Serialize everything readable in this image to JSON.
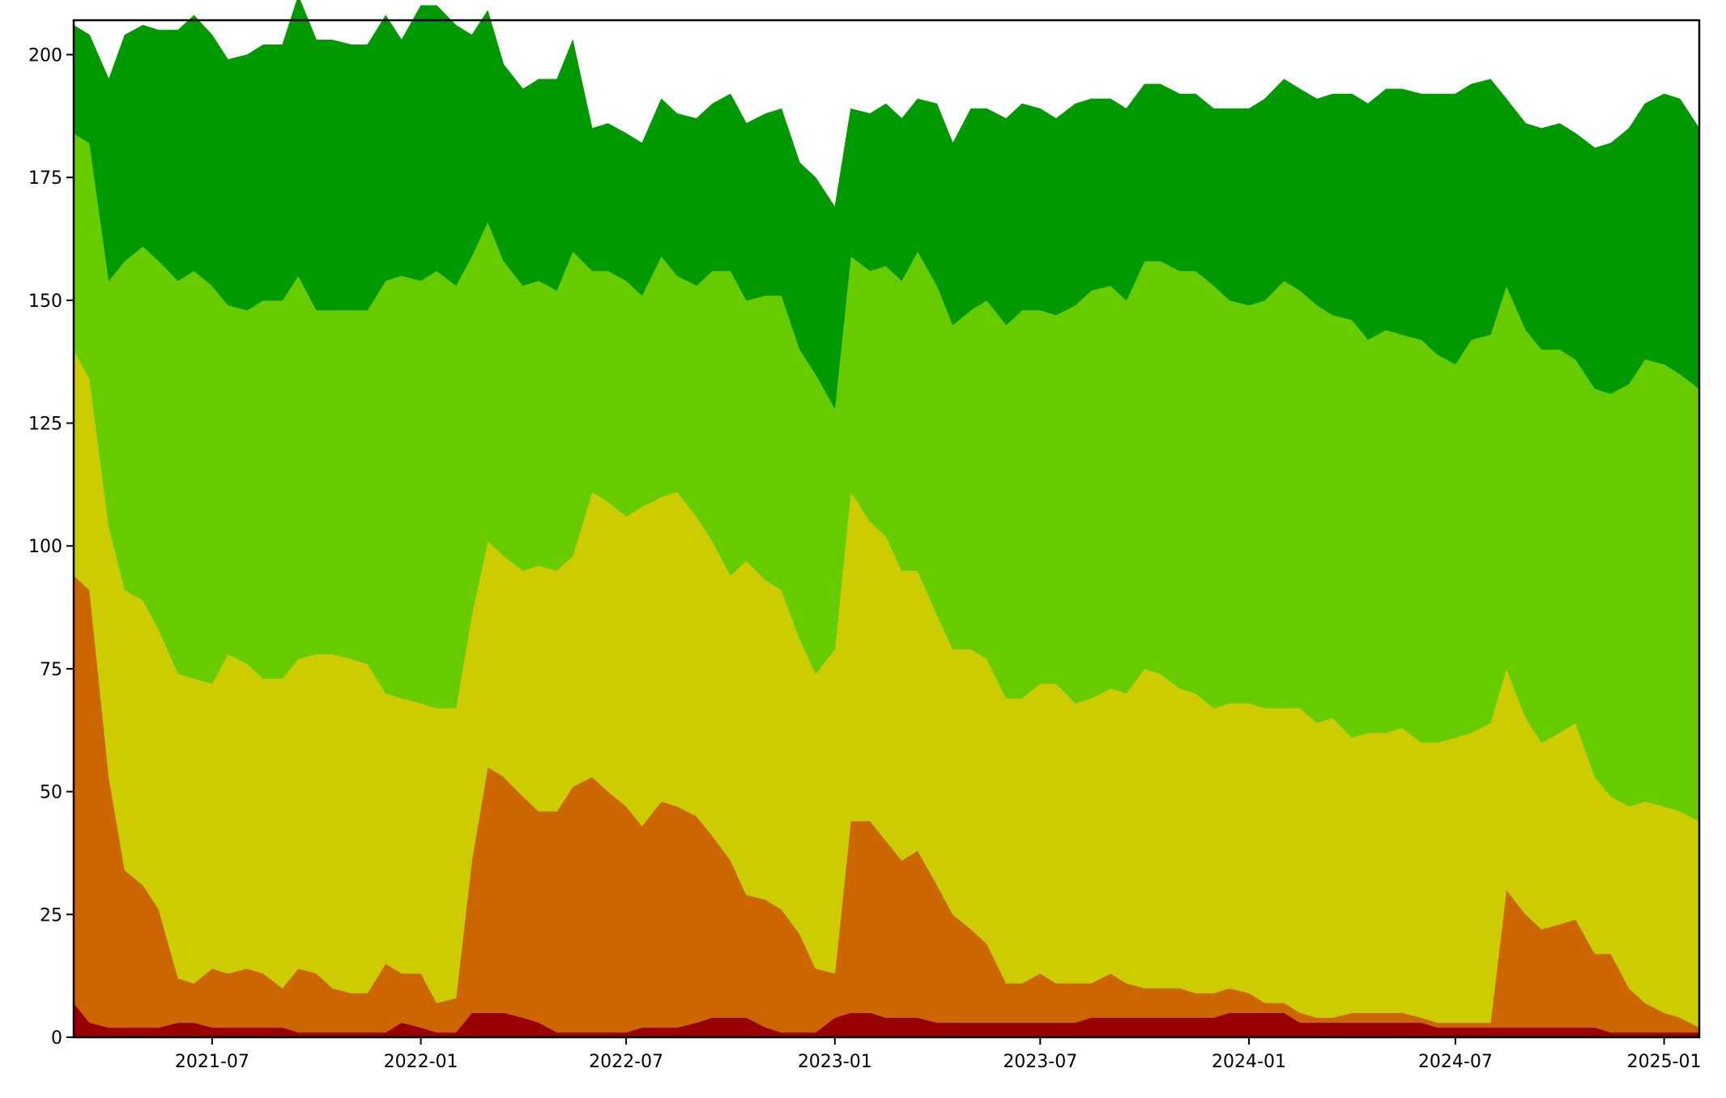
{
  "chart_data": {
    "type": "area",
    "stacked": true,
    "title": "",
    "xlabel": "",
    "ylabel": "",
    "x_start": "2021-03-01",
    "x_end": "2025-02-01",
    "ylim": [
      0,
      207
    ],
    "grid": false,
    "legend": "none",
    "x_ticks": [
      {
        "date": "2021-07-01",
        "label": "2021-07"
      },
      {
        "date": "2022-01-01",
        "label": "2022-01"
      },
      {
        "date": "2022-07-01",
        "label": "2022-07"
      },
      {
        "date": "2023-01-01",
        "label": "2023-01"
      },
      {
        "date": "2023-07-01",
        "label": "2023-07"
      },
      {
        "date": "2024-01-01",
        "label": "2024-01"
      },
      {
        "date": "2024-07-01",
        "label": "2024-07"
      },
      {
        "date": "2025-01-01",
        "label": "2025-01"
      }
    ],
    "y_ticks": [
      0,
      25,
      50,
      75,
      100,
      125,
      150,
      175,
      200
    ],
    "colors": [
      "#990000",
      "#cc6600",
      "#cccc00",
      "#66cc00",
      "#009900"
    ],
    "x": [
      "2021-03-01",
      "2021-03-15",
      "2021-04-01",
      "2021-04-15",
      "2021-05-01",
      "2021-05-15",
      "2021-06-01",
      "2021-06-15",
      "2021-07-01",
      "2021-07-15",
      "2021-08-01",
      "2021-08-15",
      "2021-09-01",
      "2021-09-15",
      "2021-10-01",
      "2021-10-15",
      "2021-11-01",
      "2021-11-15",
      "2021-12-01",
      "2021-12-15",
      "2022-01-01",
      "2022-01-15",
      "2022-02-01",
      "2022-02-15",
      "2022-03-01",
      "2022-03-15",
      "2022-04-01",
      "2022-04-15",
      "2022-05-01",
      "2022-05-15",
      "2022-06-01",
      "2022-06-15",
      "2022-07-01",
      "2022-07-15",
      "2022-08-01",
      "2022-08-15",
      "2022-09-01",
      "2022-09-15",
      "2022-10-01",
      "2022-10-15",
      "2022-11-01",
      "2022-11-15",
      "2022-12-01",
      "2022-12-15",
      "2023-01-01",
      "2023-01-15",
      "2023-02-01",
      "2023-02-15",
      "2023-03-01",
      "2023-03-15",
      "2023-04-01",
      "2023-04-15",
      "2023-05-01",
      "2023-05-15",
      "2023-06-01",
      "2023-06-15",
      "2023-07-01",
      "2023-07-15",
      "2023-08-01",
      "2023-08-15",
      "2023-09-01",
      "2023-09-15",
      "2023-10-01",
      "2023-10-15",
      "2023-11-01",
      "2023-11-15",
      "2023-12-01",
      "2023-12-15",
      "2024-01-01",
      "2024-01-15",
      "2024-02-01",
      "2024-02-15",
      "2024-03-01",
      "2024-03-15",
      "2024-04-01",
      "2024-04-15",
      "2024-05-01",
      "2024-05-15",
      "2024-06-01",
      "2024-06-15",
      "2024-07-01",
      "2024-07-15",
      "2024-08-01",
      "2024-08-15",
      "2024-09-01",
      "2024-09-15",
      "2024-10-01",
      "2024-10-15",
      "2024-11-01",
      "2024-11-15",
      "2024-12-01",
      "2024-12-15",
      "2025-01-01",
      "2025-01-15",
      "2025-02-01"
    ],
    "series": [
      {
        "values": [
          7,
          3,
          2,
          2,
          2,
          2,
          3,
          3,
          2,
          2,
          2,
          2,
          2,
          1,
          1,
          1,
          1,
          1,
          1,
          3,
          2,
          1,
          1,
          5,
          5,
          5,
          4,
          3,
          1,
          1,
          1,
          1,
          1,
          2,
          2,
          2,
          3,
          4,
          4,
          4,
          2,
          1,
          1,
          1,
          4,
          5,
          5,
          4,
          4,
          4,
          3,
          3,
          3,
          3,
          3,
          3,
          3,
          3,
          3,
          4,
          4,
          4,
          4,
          4,
          4,
          4,
          4,
          5,
          5,
          5,
          5,
          3,
          3,
          3,
          3,
          3,
          3,
          3,
          3,
          2,
          2,
          2,
          2,
          2,
          2,
          2,
          2,
          2,
          2,
          1,
          1,
          1,
          1,
          1,
          1
        ]
      },
      {
        "values": [
          87,
          88,
          51,
          32,
          29,
          24,
          9,
          8,
          12,
          11,
          12,
          11,
          8,
          13,
          12,
          9,
          8,
          8,
          14,
          10,
          11,
          6,
          7,
          31,
          50,
          48,
          45,
          43,
          45,
          50,
          52,
          49,
          46,
          41,
          46,
          45,
          42,
          37,
          32,
          25,
          26,
          25,
          20,
          13,
          9,
          39,
          39,
          36,
          32,
          34,
          28,
          22,
          19,
          16,
          8,
          8,
          10,
          8,
          8,
          7,
          9,
          7,
          6,
          6,
          6,
          5,
          5,
          5,
          4,
          2,
          2,
          2,
          1,
          1,
          2,
          2,
          2,
          2,
          1,
          1,
          1,
          1,
          1,
          28,
          23,
          20,
          21,
          22,
          15,
          16,
          9,
          6,
          4,
          3,
          1
        ]
      },
      {
        "values": [
          46,
          43,
          51,
          57,
          58,
          57,
          62,
          62,
          58,
          65,
          62,
          60,
          63,
          63,
          65,
          68,
          68,
          67,
          55,
          56,
          55,
          60,
          59,
          50,
          46,
          45,
          46,
          50,
          49,
          47,
          58,
          59,
          59,
          65,
          62,
          64,
          61,
          60,
          58,
          68,
          65,
          65,
          60,
          60,
          66,
          67,
          61,
          62,
          59,
          57,
          55,
          54,
          57,
          58,
          58,
          58,
          59,
          61,
          57,
          58,
          58,
          59,
          65,
          64,
          61,
          61,
          58,
          58,
          59,
          60,
          60,
          62,
          60,
          61,
          56,
          57,
          57,
          58,
          56,
          57,
          58,
          59,
          61,
          45,
          40,
          38,
          39,
          40,
          36,
          32,
          37,
          41,
          42,
          42,
          42
        ]
      },
      {
        "values": [
          44,
          48,
          50,
          67,
          72,
          75,
          80,
          83,
          81,
          71,
          72,
          77,
          77,
          78,
          70,
          70,
          71,
          72,
          84,
          86,
          86,
          89,
          86,
          73,
          65,
          60,
          58,
          58,
          57,
          62,
          45,
          47,
          48,
          43,
          49,
          44,
          47,
          55,
          62,
          53,
          58,
          60,
          59,
          61,
          49,
          48,
          51,
          55,
          59,
          65,
          67,
          66,
          69,
          73,
          76,
          79,
          76,
          75,
          81,
          83,
          82,
          80,
          83,
          84,
          85,
          86,
          86,
          82,
          81,
          83,
          87,
          85,
          85,
          82,
          85,
          80,
          82,
          80,
          82,
          79,
          76,
          80,
          79,
          78,
          79,
          80,
          78,
          74,
          79,
          82,
          86,
          90,
          90,
          89,
          88
        ]
      },
      {
        "values": [
          22,
          22,
          41,
          46,
          45,
          47,
          51,
          52,
          51,
          50,
          52,
          52,
          52,
          57,
          55,
          55,
          54,
          54,
          54,
          48,
          56,
          54,
          53,
          45,
          43,
          40,
          40,
          41,
          43,
          43,
          29,
          30,
          30,
          31,
          32,
          33,
          34,
          34,
          36,
          36,
          37,
          38,
          38,
          40,
          41,
          30,
          32,
          33,
          33,
          31,
          37,
          37,
          41,
          39,
          42,
          42,
          41,
          40,
          41,
          39,
          38,
          39,
          36,
          36,
          36,
          36,
          36,
          39,
          40,
          41,
          41,
          41,
          42,
          45,
          46,
          48,
          49,
          50,
          50,
          53,
          55,
          52,
          52,
          38,
          42,
          45,
          46,
          46,
          49,
          51,
          52,
          52,
          55,
          56,
          53
        ]
      }
    ]
  }
}
